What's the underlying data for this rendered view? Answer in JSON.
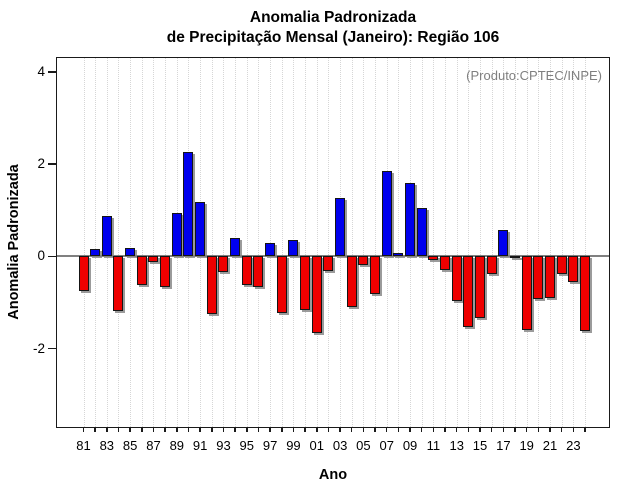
{
  "title": {
    "line1": "Anomalia Padronizada",
    "line2": "de Precipitação Mensal (Janeiro): Região 106"
  },
  "annotation": "(Produto:CPTEC/INPE)",
  "chart_data": {
    "type": "bar",
    "title": "Anomalia Padronizada de Precipitação Mensal (Janeiro): Região 106",
    "xlabel": "Ano",
    "ylabel": "Anomalia Padronizada",
    "x": [
      1981,
      1982,
      1983,
      1984,
      1985,
      1986,
      1987,
      1988,
      1989,
      1990,
      1991,
      1992,
      1993,
      1994,
      1995,
      1996,
      1997,
      1998,
      1999,
      2000,
      2001,
      2002,
      2003,
      2004,
      2005,
      2006,
      2007,
      2008,
      2009,
      2010,
      2011,
      2012,
      2013,
      2014,
      2015,
      2016,
      2017,
      2018,
      2019,
      2020,
      2021,
      2022,
      2023,
      2024
    ],
    "values": [
      -0.76,
      0.15,
      0.88,
      -1.18,
      0.18,
      -0.62,
      -0.12,
      -0.67,
      0.95,
      2.26,
      1.17,
      -1.25,
      -0.33,
      0.39,
      -0.62,
      -0.67,
      0.28,
      -1.23,
      0.36,
      -1.17,
      -1.67,
      -0.31,
      1.26,
      -1.09,
      -0.18,
      -0.81,
      1.86,
      0.07,
      1.59,
      1.04,
      -0.07,
      -0.29,
      -0.96,
      -1.53,
      -1.33,
      -0.39,
      0.57,
      -0.03,
      -1.6,
      -0.92,
      -0.91,
      -0.39,
      -0.56,
      -1.62
    ],
    "x_tick_labels": [
      "81",
      "83",
      "85",
      "87",
      "89",
      "91",
      "93",
      "95",
      "97",
      "99",
      "01",
      "03",
      "05",
      "07",
      "09",
      "11",
      "13",
      "15",
      "17",
      "19",
      "21",
      "23"
    ],
    "y_ticks": [
      -2,
      0,
      2,
      4
    ],
    "ylim": [
      -3.7,
      4.3
    ],
    "grid": "vertical-dotted",
    "legend": "none",
    "colors": {
      "positive": "#0000ee",
      "negative": "#ee0000",
      "bar_border": "#151515",
      "zero_line": "#808080",
      "grid": "#d6d6d6",
      "annotation": "#7f7f7f",
      "axis": "#1a1a1a"
    }
  }
}
